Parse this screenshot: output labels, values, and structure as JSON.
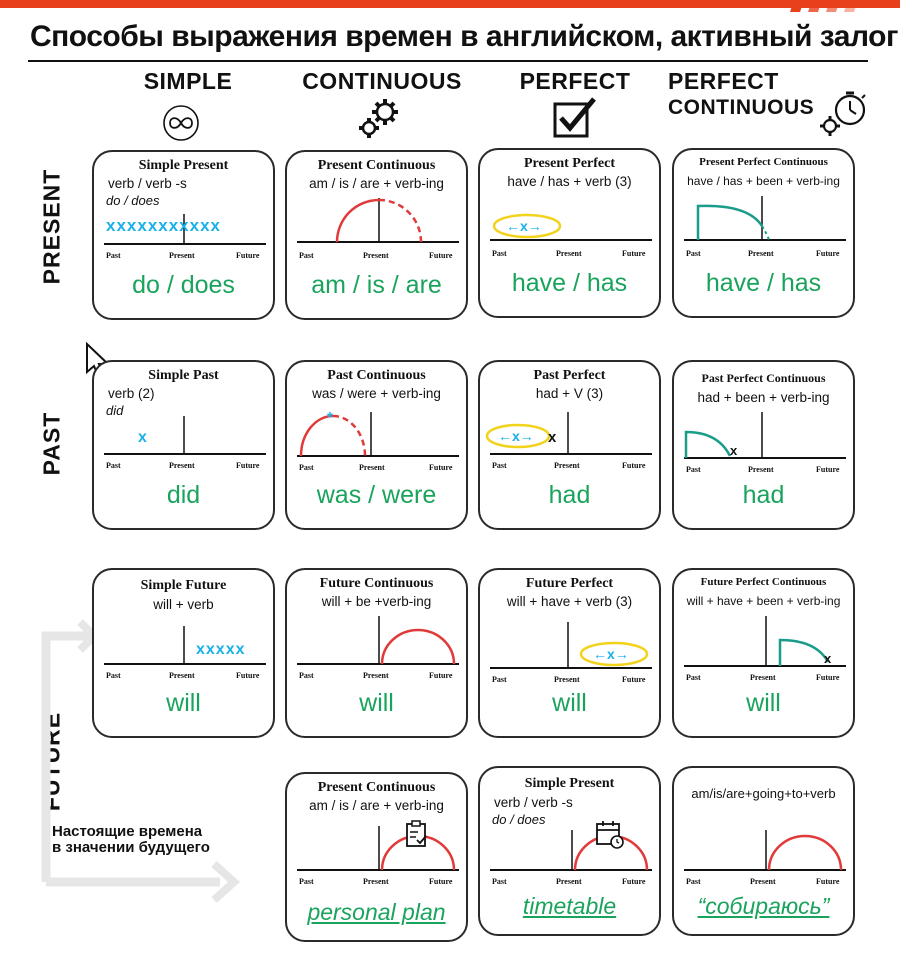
{
  "title": "Способы выражения времен в английском, активный залог",
  "columns": [
    {
      "label": "SIMPLE",
      "icon": "infinity-icon"
    },
    {
      "label": "CONTINUOUS",
      "icon": "gears-icon"
    },
    {
      "label": "PERFECT",
      "icon": "checkbox-icon"
    },
    {
      "label": "PERFECT\nCONTINUOUS",
      "label_1": "PERFECT",
      "label_2": "CONTINUOUS",
      "icon": "gear-stopwatch-icon"
    }
  ],
  "rows": [
    "PRESENT",
    "PAST",
    "FUTURE"
  ],
  "timeline_labels": {
    "past": "Past",
    "present": "Present",
    "future": "Future"
  },
  "note": {
    "line1": "Настоящие времена",
    "line2": "в значении будущего"
  },
  "colors": {
    "accent_green": "#1aa35c",
    "arc_red": "#e03a3a",
    "mark_blue": "#1ab0e8",
    "teal": "#1a9c8a",
    "bar_orange": "#e8401c",
    "highlight_yellow": "#f2d21a"
  },
  "cards": {
    "present_simple": {
      "title": "Simple Present",
      "formula": "verb / verb -s",
      "aux": "do / does",
      "bottom": "do / does"
    },
    "present_continuous": {
      "title": "Present Continuous",
      "formula": "am / is / are + verb-ing",
      "bottom": "am / is / are"
    },
    "present_perfect": {
      "title": "Present Perfect",
      "formula": "have / has + verb (3)",
      "bottom": "have / has"
    },
    "present_perfect_continuous": {
      "title": "Present Perfect Continuous",
      "formula": "have / has + been + verb-ing",
      "bottom": "have / has"
    },
    "past_simple": {
      "title": "Simple Past",
      "formula": "verb (2)",
      "aux": "did",
      "bottom": "did"
    },
    "past_continuous": {
      "title": "Past Continuous",
      "formula": "was / were + verb-ing",
      "bottom": "was / were"
    },
    "past_perfect": {
      "title": "Past Perfect",
      "formula": "had + V (3)",
      "bottom": "had"
    },
    "past_perfect_continuous": {
      "title": "Past Perfect Continuous",
      "formula": "had + been + verb-ing",
      "bottom": "had"
    },
    "future_simple": {
      "title": "Simple Future",
      "formula": "will + verb",
      "bottom": "will"
    },
    "future_continuous": {
      "title": "Future Continuous",
      "formula": "will + be +verb-ing",
      "bottom": "will"
    },
    "future_perfect": {
      "title": "Future Perfect",
      "formula": "will + have + verb (3)",
      "bottom": "will"
    },
    "future_perfect_continuous": {
      "title": "Future Perfect Continuous",
      "formula": "will + have + been + verb-ing",
      "bottom": "will"
    },
    "plan_continuous": {
      "title": "Present Continuous",
      "formula": "am / is / are + verb-ing",
      "bottom": "personal plan"
    },
    "plan_simple": {
      "title": "Simple Present",
      "formula": "verb / verb -s",
      "aux": "do / does",
      "bottom": "timetable"
    },
    "plan_going_to": {
      "formula": "am/is/are+going+to+verb",
      "bottom": "“собираюсь”"
    }
  }
}
